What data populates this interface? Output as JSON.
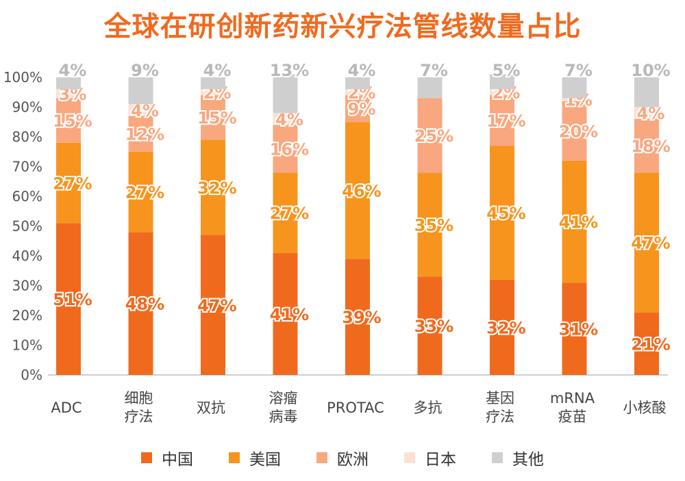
{
  "title": "全球在研创新药新兴疗法管线数量占比",
  "colors": {
    "title": "#f06a1e",
    "中国": "#f06a1e",
    "美国": "#f7941d",
    "欧洲": "#f9a77f",
    "日本": "#fde0d4",
    "其他": "#cfcfcf"
  },
  "chart_data": {
    "type": "bar",
    "stacked": true,
    "categories": [
      "ADC",
      "细胞\n疗法",
      "双抗",
      "溶瘤\n病毒",
      "PROTAC",
      "多抗",
      "基因\n疗法",
      "mRNA\n疫苗",
      "小核酸"
    ],
    "series": [
      {
        "name": "中国",
        "values": [
          51,
          48,
          47,
          41,
          39,
          33,
          32,
          31,
          21
        ],
        "labels": [
          "51%",
          "48%",
          "47%",
          "41%",
          "39%",
          "33%",
          "32%",
          "31%",
          "21%"
        ]
      },
      {
        "name": "美国",
        "values": [
          27,
          27,
          32,
          27,
          46,
          35,
          45,
          41,
          47
        ],
        "labels": [
          "27%",
          "27%",
          "32%",
          "27%",
          "46%",
          "35%",
          "45%",
          "41%",
          "47%"
        ]
      },
      {
        "name": "欧洲",
        "values": [
          15,
          12,
          15,
          16,
          9,
          25,
          17,
          20,
          18
        ],
        "labels": [
          "15%",
          "12%",
          "15%",
          "16%",
          "9%",
          "25%",
          "17%",
          "20%",
          "18%"
        ]
      },
      {
        "name": "日本",
        "values": [
          3,
          4,
          2,
          4,
          2,
          0,
          2,
          1,
          4
        ],
        "labels": [
          "3%",
          "4%",
          "2%",
          "4%",
          "2%",
          "",
          "2%",
          "1%",
          "4%"
        ]
      },
      {
        "name": "其他",
        "values": [
          4,
          9,
          4,
          13,
          4,
          7,
          5,
          7,
          10
        ],
        "labels": [
          "4%",
          "9%",
          "4%",
          "13%",
          "4%",
          "7%",
          "5%",
          "7%",
          "10%"
        ]
      }
    ],
    "yticks": [
      "0%",
      "10%",
      "20%",
      "30%",
      "40%",
      "50%",
      "60%",
      "70%",
      "80%",
      "90%",
      "100%"
    ],
    "ylim": [
      0,
      100
    ],
    "grid": false,
    "legend_position": "bottom"
  }
}
